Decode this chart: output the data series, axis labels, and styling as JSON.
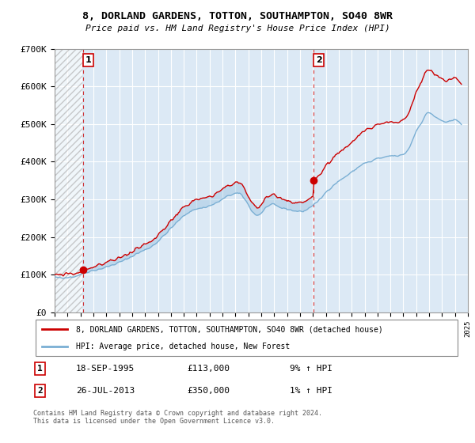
{
  "title": "8, DORLAND GARDENS, TOTTON, SOUTHAMPTON, SO40 8WR",
  "subtitle": "Price paid vs. HM Land Registry's House Price Index (HPI)",
  "legend_line1": "8, DORLAND GARDENS, TOTTON, SOUTHAMPTON, SO40 8WR (detached house)",
  "legend_line2": "HPI: Average price, detached house, New Forest",
  "transaction1_date": "18-SEP-1995",
  "transaction1_price": "£113,000",
  "transaction1_hpi": "9% ↑ HPI",
  "transaction2_date": "26-JUL-2013",
  "transaction2_price": "£350,000",
  "transaction2_hpi": "1% ↑ HPI",
  "footer": "Contains HM Land Registry data © Crown copyright and database right 2024.\nThis data is licensed under the Open Government Licence v3.0.",
  "red_color": "#cc0000",
  "blue_color": "#7aafd4",
  "bg_color": "#dce9f5",
  "ylim": [
    0,
    700000
  ],
  "yticks": [
    0,
    100000,
    200000,
    300000,
    400000,
    500000,
    600000,
    700000
  ],
  "ytick_labels": [
    "£0",
    "£100K",
    "£200K",
    "£300K",
    "£400K",
    "£500K",
    "£600K",
    "£700K"
  ],
  "t1_x": 1995.72,
  "t1_y": 113000,
  "t2_x": 2013.57,
  "t2_y": 350000,
  "vline1_x": 1995.72,
  "vline2_x": 2013.57,
  "xlim_left": 1993.5,
  "xlim_right": 2025.0
}
